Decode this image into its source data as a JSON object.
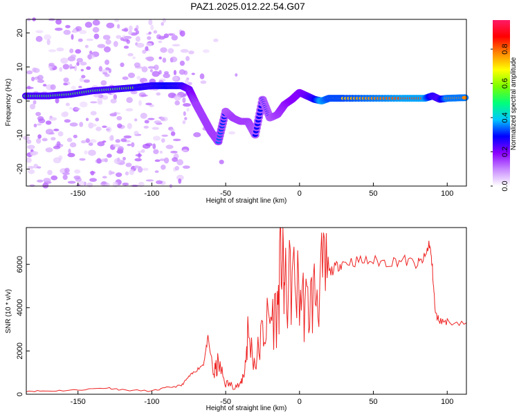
{
  "figure": {
    "title": "PAZ1.2025.012.22.54.G07"
  },
  "chart_data": [
    {
      "type": "heatmap",
      "xlabel": "Height of straight line (km)",
      "ylabel": "Frequency (Hz)",
      "xlim": [
        -185,
        113
      ],
      "ylim": [
        -25,
        24
      ],
      "xticks": [
        -150,
        -100,
        -50,
        0,
        50,
        100
      ],
      "yticks": [
        -20,
        -10,
        0,
        10,
        20
      ],
      "colorbar": {
        "label": "Normalized spectral amplitude",
        "ticks": [
          0.0,
          0.2,
          0.4,
          0.6,
          0.8
        ],
        "tick_labels": [
          "0.0",
          "0.2",
          "0.4",
          "0.6",
          "0.8"
        ],
        "range": [
          0,
          0.97
        ],
        "colors": [
          "#ffffff",
          "#c88aff",
          "#8a00ff",
          "#0000ff",
          "#00c8ff",
          "#00ff7a",
          "#7aff00",
          "#ffff00",
          "#ff8800",
          "#ff0000",
          "#ff1a66"
        ]
      },
      "ridge": {
        "x": [
          -185,
          -170,
          -155,
          -140,
          -125,
          -110,
          -100,
          -90,
          -80,
          -75,
          -70,
          -65,
          -60,
          -55,
          -50,
          -45,
          -40,
          -35,
          -30,
          -25,
          -20,
          -15,
          -10,
          -5,
          0,
          5,
          10,
          15,
          20,
          30,
          50,
          70,
          85,
          90,
          95,
          100,
          113
        ],
        "y": [
          1.5,
          1.5,
          2.0,
          3.0,
          3.5,
          4.0,
          4.5,
          4.5,
          4.5,
          3.5,
          -1.0,
          -5.0,
          -9.0,
          -12.0,
          -3.0,
          -5.0,
          -6.0,
          -6.0,
          -10.0,
          0.5,
          -5.0,
          -4.0,
          -1.0,
          0.5,
          2.5,
          1.5,
          0.5,
          0.0,
          0.8,
          0.8,
          0.8,
          0.8,
          0.8,
          1.5,
          0.5,
          0.8,
          1.0
        ],
        "amplitude": [
          0.55,
          0.55,
          0.55,
          0.55,
          0.55,
          0.6,
          0.6,
          0.65,
          0.6,
          0.5,
          0.35,
          0.35,
          0.35,
          0.35,
          0.3,
          0.35,
          0.35,
          0.35,
          0.3,
          0.3,
          0.3,
          0.35,
          0.4,
          0.45,
          0.45,
          0.5,
          0.6,
          0.85,
          0.75,
          0.75,
          0.8,
          0.85,
          0.85,
          0.6,
          0.55,
          0.8,
          0.8
        ]
      }
    },
    {
      "type": "line",
      "xlabel": "Height of straight line (km)",
      "ylabel": "SNR (10 * v/v)",
      "xlim": [
        -185,
        113
      ],
      "ylim": [
        0,
        7700
      ],
      "xticks": [
        -150,
        -100,
        -50,
        0,
        50,
        100
      ],
      "yticks": [
        0,
        2000,
        4000,
        6000
      ],
      "line_color": "#ee2222",
      "series": [
        {
          "x": [
            -185,
            -170,
            -150,
            -130,
            -120,
            -100,
            -90,
            -80,
            -75,
            -70,
            -65,
            -62,
            -58,
            -55,
            -50,
            -45,
            -40,
            -37,
            -35,
            -30,
            -25,
            -20,
            -15,
            -12,
            -10,
            -5,
            0,
            5,
            10,
            15,
            20,
            25,
            30,
            40,
            50,
            60,
            70,
            80,
            85,
            88,
            90,
            92,
            95,
            100,
            113
          ],
          "y": [
            150,
            150,
            200,
            300,
            200,
            150,
            300,
            400,
            800,
            1100,
            1400,
            2600,
            900,
            1400,
            500,
            400,
            400,
            1200,
            2800,
            1400,
            2800,
            3500,
            3800,
            6900,
            4600,
            5300,
            4700,
            3900,
            4600,
            5200,
            5600,
            5900,
            6100,
            6150,
            6150,
            6100,
            6200,
            6000,
            6300,
            7000,
            5800,
            3700,
            3400,
            3350,
            3300
          ]
        }
      ]
    }
  ]
}
